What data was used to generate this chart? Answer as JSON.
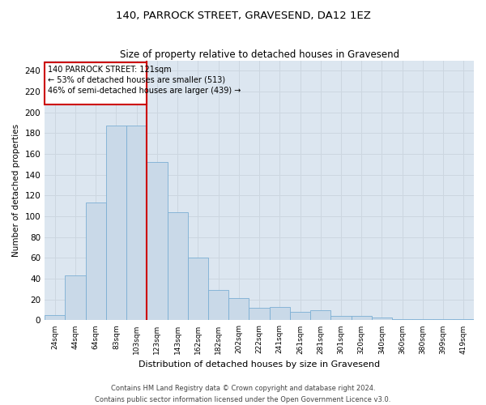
{
  "title": "140, PARROCK STREET, GRAVESEND, DA12 1EZ",
  "subtitle": "Size of property relative to detached houses in Gravesend",
  "xlabel": "Distribution of detached houses by size in Gravesend",
  "ylabel": "Number of detached properties",
  "bar_labels": [
    "24sqm",
    "44sqm",
    "64sqm",
    "83sqm",
    "103sqm",
    "123sqm",
    "143sqm",
    "162sqm",
    "182sqm",
    "202sqm",
    "222sqm",
    "241sqm",
    "261sqm",
    "281sqm",
    "301sqm",
    "320sqm",
    "340sqm",
    "360sqm",
    "380sqm",
    "399sqm",
    "419sqm"
  ],
  "bar_values": [
    5,
    43,
    113,
    187,
    187,
    152,
    104,
    60,
    29,
    21,
    12,
    13,
    8,
    10,
    4,
    4,
    3,
    1,
    1,
    1,
    1
  ],
  "bar_color": "#c9d9e8",
  "bar_edge_color": "#7bafd4",
  "vline_x": 4.5,
  "vline_color": "#cc0000",
  "annotation_line1": "140 PARROCK STREET: 121sqm",
  "annotation_line2": "← 53% of detached houses are smaller (513)",
  "annotation_line3": "46% of semi-detached houses are larger (439) →",
  "ylim": [
    0,
    250
  ],
  "yticks": [
    0,
    20,
    40,
    60,
    80,
    100,
    120,
    140,
    160,
    180,
    200,
    220,
    240
  ],
  "grid_color": "#ccd6e0",
  "background_color": "#dce6f0",
  "footer_line1": "Contains HM Land Registry data © Crown copyright and database right 2024.",
  "footer_line2": "Contains public sector information licensed under the Open Government Licence v3.0."
}
